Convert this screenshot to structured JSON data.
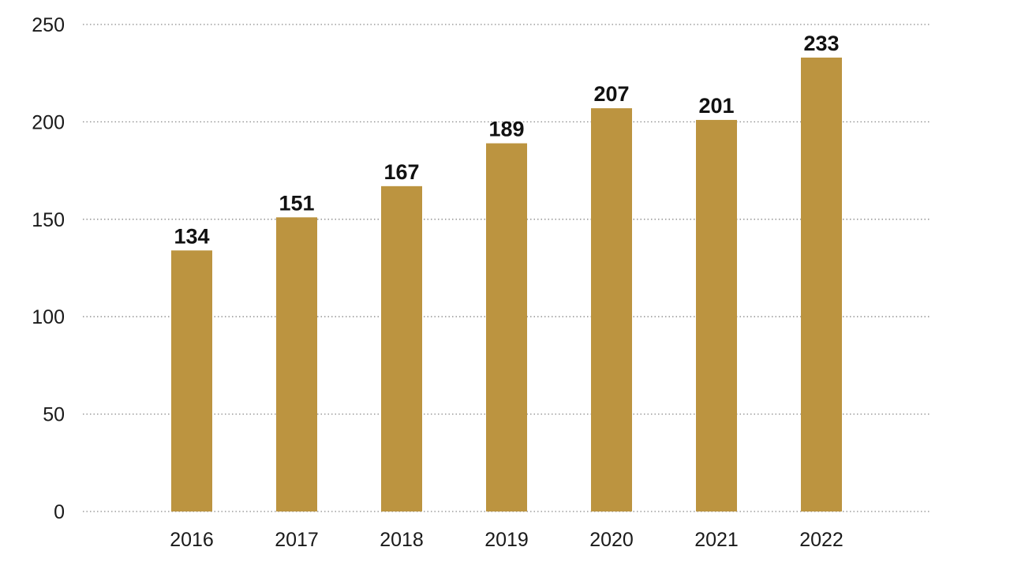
{
  "chart_data": {
    "type": "bar",
    "categories": [
      "2016",
      "2017",
      "2018",
      "2019",
      "2020",
      "2021",
      "2022"
    ],
    "values": [
      134,
      151,
      167,
      189,
      207,
      201,
      233
    ],
    "data_labels": [
      "134",
      "151",
      "167",
      "189",
      "207",
      "201",
      "233"
    ],
    "title": "",
    "xlabel": "",
    "ylabel": "",
    "ylim": [
      0,
      250
    ],
    "yticks": [
      0,
      50,
      100,
      150,
      200,
      250
    ],
    "ytick_labels": [
      "0",
      "50",
      "100",
      "150",
      "200",
      "250"
    ],
    "grid": true,
    "grid_style": "dotted horizontal",
    "legend": "none",
    "bar_color": "#BC9440"
  }
}
